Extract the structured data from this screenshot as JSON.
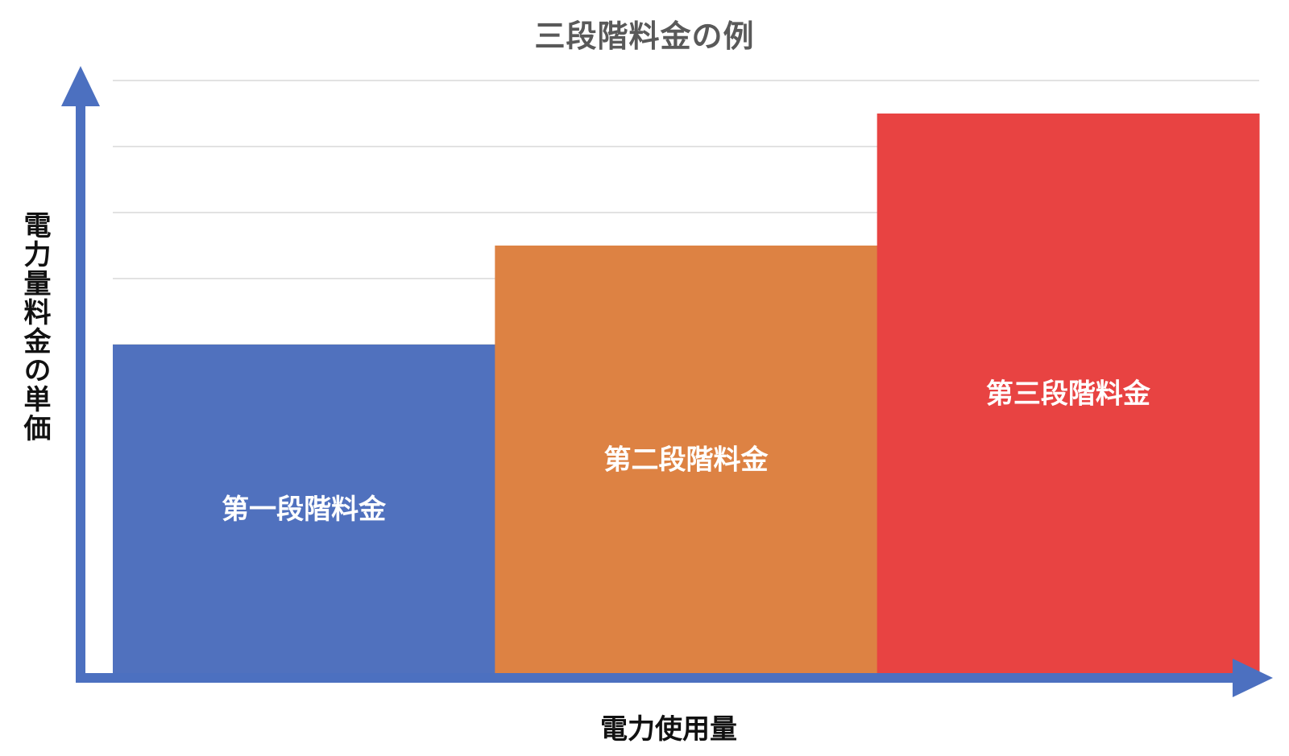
{
  "chart_data": {
    "type": "bar",
    "title": "三段階料金の例",
    "xlabel": "電力使用量",
    "ylabel": "電力量料金の単価",
    "categories": [
      "第一段階料金",
      "第二段階料金",
      "第三段階料金"
    ],
    "values": [
      5,
      6.5,
      8.5
    ],
    "ylim": [
      0,
      9
    ],
    "grid": true,
    "bar_label_position": "inside",
    "colors": [
      "#5071BE",
      "#DD8243",
      "#E84342"
    ]
  }
}
